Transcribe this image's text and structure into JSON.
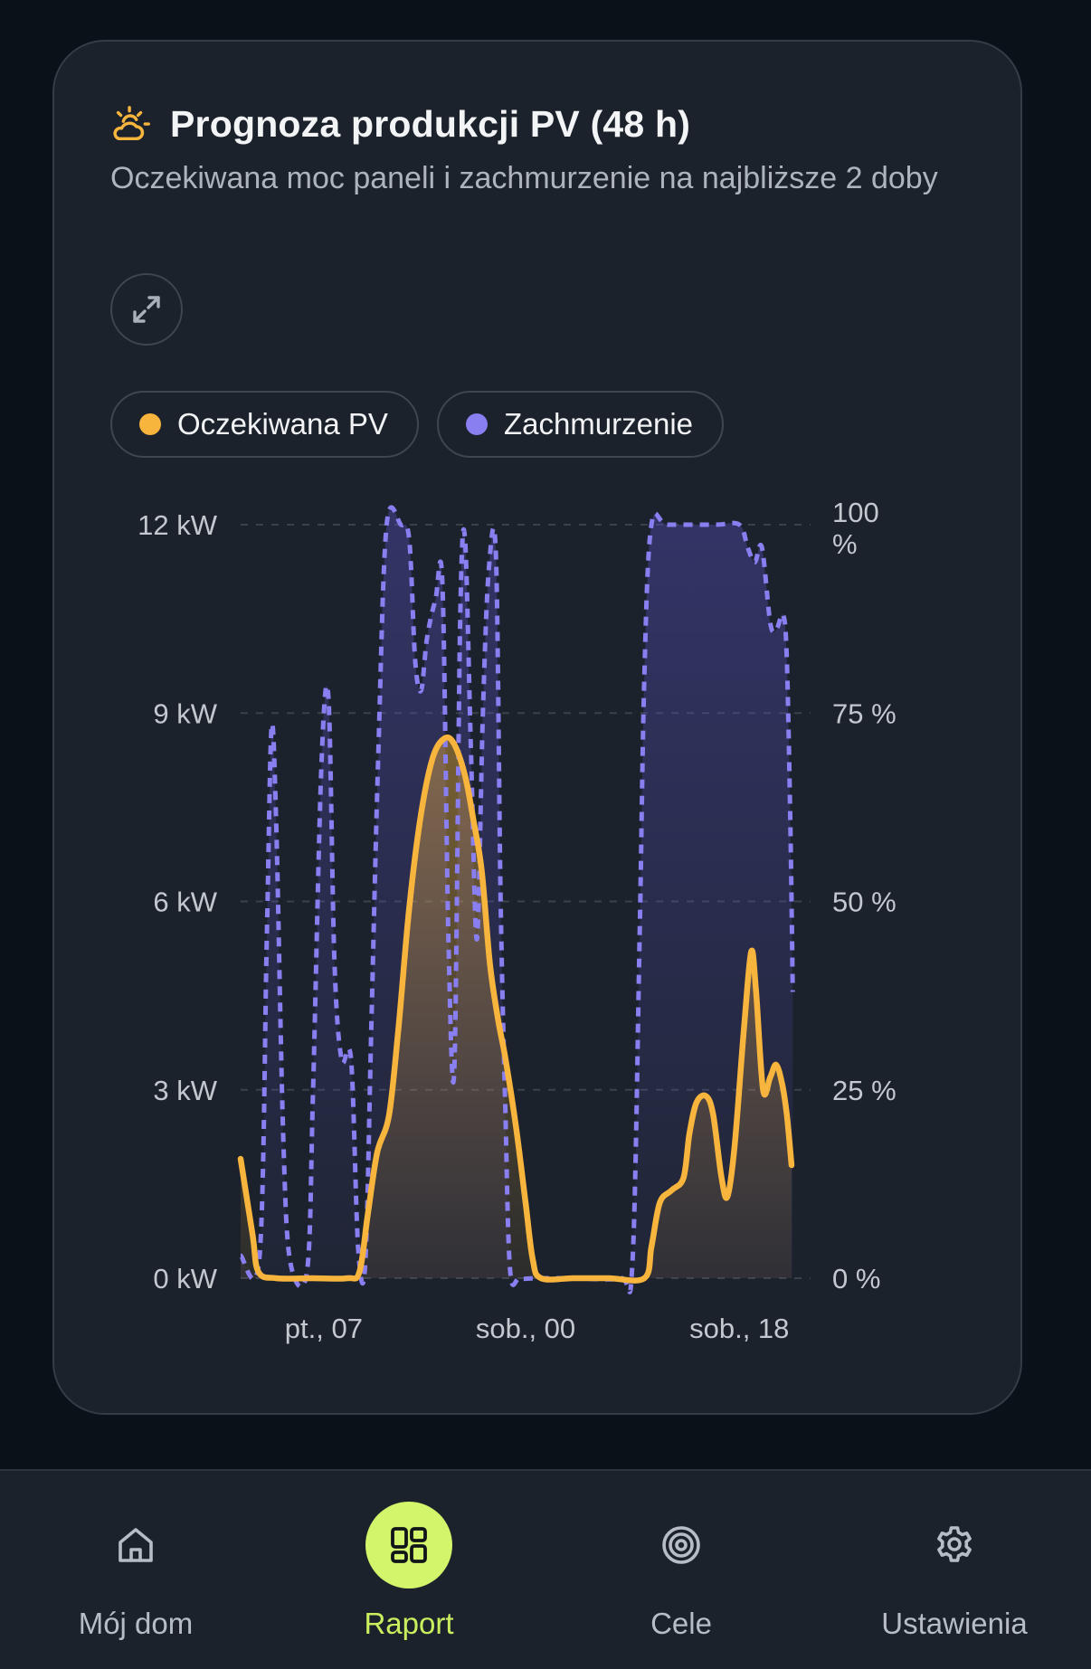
{
  "card": {
    "title": "Prognoza produkcji PV (48 h)",
    "subtitle": "Oczekiwana moc paneli i zachmurzenie na najbliższe 2 doby",
    "title_icon": "weather-sun-cloud-icon",
    "expand_icon": "expand-arrows-icon"
  },
  "legend": [
    {
      "label": "Oczekiwana PV",
      "color": "#f7b53e"
    },
    {
      "label": "Zachmurzenie",
      "color": "#8a7ff0"
    }
  ],
  "chart_data": {
    "type": "area",
    "y_left": {
      "ticks": [
        "0 kW",
        "3 kW",
        "6 kW",
        "9 kW",
        "12 kW"
      ],
      "range": [
        0,
        12
      ],
      "unit": "kW"
    },
    "y_right": {
      "ticks": [
        "0 %",
        "25 %",
        "50 %",
        "75 %",
        "100 %"
      ],
      "range": [
        0,
        100
      ],
      "unit": "%"
    },
    "x": {
      "range": [
        0,
        48
      ],
      "unit": "h",
      "tick_labels": [
        "pt., 07",
        "sob., 00",
        "sob., 18"
      ],
      "tick_positions": [
        7,
        24,
        42
      ]
    },
    "grid": true,
    "series": [
      {
        "name": "Oczekiwana PV",
        "color": "#f7b53e",
        "style": "solid",
        "axis": "left",
        "points": [
          [
            0,
            1.9
          ],
          [
            1,
            0.7
          ],
          [
            1.5,
            0.1
          ],
          [
            3,
            0
          ],
          [
            6,
            0
          ],
          [
            9,
            0
          ],
          [
            10,
            0.1
          ],
          [
            10.7,
            1.0
          ],
          [
            11.5,
            2.0
          ],
          [
            12.5,
            2.6
          ],
          [
            13.3,
            4.0
          ],
          [
            14.2,
            5.9
          ],
          [
            15.2,
            7.4
          ],
          [
            16.2,
            8.3
          ],
          [
            17.2,
            8.6
          ],
          [
            18,
            8.5
          ],
          [
            18.9,
            8.0
          ],
          [
            19.6,
            7.3
          ],
          [
            20.3,
            6.5
          ],
          [
            21,
            5.0
          ],
          [
            21.7,
            4.1
          ],
          [
            22.3,
            3.5
          ],
          [
            23.2,
            2.4
          ],
          [
            24,
            1.2
          ],
          [
            24.6,
            0.3
          ],
          [
            25.3,
            0
          ],
          [
            28,
            0
          ],
          [
            31,
            0
          ],
          [
            34,
            0
          ],
          [
            34.6,
            0.5
          ],
          [
            35.3,
            1.2
          ],
          [
            36.3,
            1.4
          ],
          [
            37.3,
            1.6
          ],
          [
            37.8,
            2.3
          ],
          [
            38.4,
            2.8
          ],
          [
            39.2,
            2.9
          ],
          [
            39.8,
            2.6
          ],
          [
            40.5,
            1.6
          ],
          [
            41,
            1.3
          ],
          [
            41.6,
            2.1
          ],
          [
            42.4,
            4.0
          ],
          [
            43,
            5.2
          ],
          [
            43.4,
            4.6
          ],
          [
            44,
            3.0
          ],
          [
            44.6,
            3.2
          ],
          [
            45.1,
            3.4
          ],
          [
            45.6,
            3.1
          ],
          [
            46,
            2.6
          ],
          [
            46.4,
            1.8
          ]
        ]
      },
      {
        "name": "Zachmurzenie",
        "color": "#8a7ff0",
        "style": "dashed",
        "axis": "right",
        "points": [
          [
            0,
            3
          ],
          [
            1.6,
            3
          ],
          [
            2.2,
            45
          ],
          [
            2.6,
            73
          ],
          [
            3.0,
            60
          ],
          [
            3.6,
            18
          ],
          [
            4.2,
            2
          ],
          [
            5.6,
            1
          ],
          [
            6.1,
            25
          ],
          [
            6.8,
            68
          ],
          [
            7.4,
            77
          ],
          [
            7.9,
            42
          ],
          [
            8.5,
            29
          ],
          [
            9.3,
            29
          ],
          [
            9.9,
            4
          ],
          [
            10.5,
            2
          ],
          [
            11.0,
            33
          ],
          [
            11.6,
            70
          ],
          [
            12.3,
            100
          ],
          [
            13.5,
            100
          ],
          [
            14.2,
            98
          ],
          [
            14.7,
            82
          ],
          [
            15.2,
            78
          ],
          [
            15.7,
            85
          ],
          [
            16.4,
            90
          ],
          [
            17.0,
            92
          ],
          [
            17.5,
            45
          ],
          [
            18.0,
            28
          ],
          [
            18.5,
            88
          ],
          [
            18.9,
            98
          ],
          [
            19.4,
            70
          ],
          [
            19.9,
            45
          ],
          [
            20.4,
            75
          ],
          [
            20.9,
            94
          ],
          [
            21.5,
            96
          ],
          [
            21.9,
            50
          ],
          [
            22.3,
            22
          ],
          [
            22.7,
            1
          ],
          [
            23.5,
            0
          ],
          [
            25,
            0
          ],
          [
            28,
            0
          ],
          [
            32,
            0
          ],
          [
            33,
            2
          ],
          [
            33.6,
            45
          ],
          [
            34.0,
            80
          ],
          [
            34.6,
            100
          ],
          [
            36,
            100
          ],
          [
            40,
            100
          ],
          [
            42,
            100
          ],
          [
            42.7,
            97
          ],
          [
            43.3,
            95
          ],
          [
            43.9,
            97
          ],
          [
            44.6,
            87
          ],
          [
            45.1,
            86
          ],
          [
            45.7,
            88
          ],
          [
            46.0,
            82
          ],
          [
            46.3,
            60
          ],
          [
            46.5,
            38
          ]
        ]
      }
    ]
  },
  "nav": [
    {
      "label": "Mój dom",
      "icon": "home-icon",
      "active": false
    },
    {
      "label": "Raport",
      "icon": "dashboard-grid-icon",
      "active": true
    },
    {
      "label": "Cele",
      "icon": "target-icon",
      "active": false
    },
    {
      "label": "Ustawienia",
      "icon": "gear-icon",
      "active": false
    }
  ]
}
